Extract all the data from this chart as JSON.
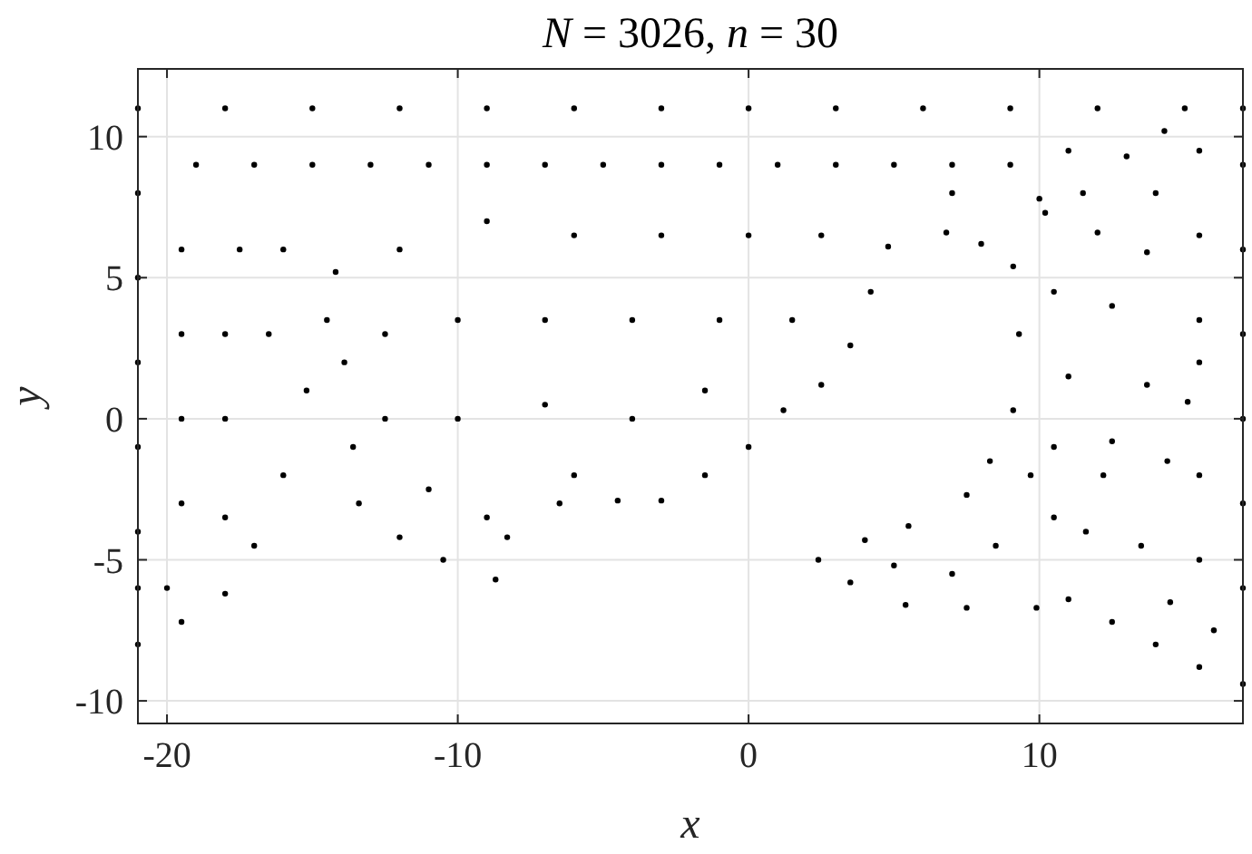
{
  "chart_data": {
    "type": "scatter",
    "title": "N = 3026, n = 30",
    "xlabel": "x",
    "ylabel": "y",
    "xlim": [
      -21,
      17
    ],
    "ylim": [
      -10.8,
      12.4
    ],
    "xticks": [
      -20,
      -10,
      0,
      10
    ],
    "yticks": [
      -10,
      -5,
      0,
      5,
      10
    ],
    "grid": true,
    "marker": "circle",
    "series": [
      {
        "color": "#000000",
        "x": [
          -21,
          -18,
          -15,
          -12,
          -9,
          -6,
          -3,
          0,
          3,
          6,
          9,
          12,
          15,
          17,
          -21,
          -21,
          -21,
          -21,
          -21,
          -21,
          -21,
          -19.5,
          -18,
          -17,
          -16,
          -15.2,
          -14.5,
          -14.2,
          -13.9,
          -13.6,
          -13.4,
          -12,
          -10.5,
          -8.7,
          -8.3,
          -6.5,
          -4.5,
          -3,
          -1.5,
          0,
          1.2,
          2.5,
          3.5,
          4.2,
          4.8,
          6.8,
          8,
          9.1,
          9.3,
          9.1,
          8.3,
          7.5,
          5.5,
          4,
          2.4,
          3.5,
          5.4,
          7.5,
          9.9,
          11,
          11.6,
          12.2,
          12.5,
          13.7,
          15.1,
          14.4,
          13.5,
          12.5,
          14,
          15.5,
          17,
          17,
          17,
          17,
          17,
          17,
          17,
          10.2,
          11.5,
          13,
          14.3,
          14,
          13.7,
          12,
          -19,
          -17,
          -15,
          -13,
          -11,
          -9,
          -7,
          -5,
          -3,
          -1,
          1,
          3,
          5,
          7,
          9,
          11,
          15.5,
          -19.5,
          -17.5,
          -16,
          -12,
          -9,
          -6,
          -3,
          0,
          2.5,
          7,
          10,
          15.5,
          -19.5,
          -18,
          -16.5,
          -12.5,
          -10,
          -7,
          -4,
          -1,
          1.5,
          10.5,
          12.5,
          15.5,
          11,
          15.5,
          -19.5,
          -18,
          -12.5,
          -10,
          -7,
          -4,
          -1.5,
          10.5,
          10.5,
          15.5,
          15.5,
          14.5,
          16,
          -19.5,
          -18,
          -20,
          -11,
          -9,
          -6,
          8.5,
          7,
          5,
          9.7
        ],
        "values": [
          11,
          11,
          11,
          11,
          11,
          11,
          11,
          11,
          11,
          11,
          11,
          11,
          11,
          11,
          8,
          5,
          2,
          -1,
          -4,
          -6,
          -8,
          -7.2,
          -6.2,
          -4.5,
          -2,
          1,
          3.5,
          5.2,
          2,
          -1,
          -3,
          -4.2,
          -5,
          -5.7,
          -4.2,
          -3,
          -2.9,
          -2.9,
          -2,
          -1,
          0.3,
          1.2,
          2.6,
          4.5,
          6.1,
          6.6,
          6.2,
          5.4,
          3,
          0.3,
          -1.5,
          -2.7,
          -3.8,
          -4.3,
          -5,
          -5.8,
          -6.6,
          -6.7,
          -6.7,
          -6.4,
          -4,
          -2,
          -0.8,
          1.2,
          0.6,
          -1.5,
          -4.5,
          -7.2,
          -8,
          -8.8,
          -9.4,
          -6,
          -3,
          0,
          3,
          6,
          9,
          7.3,
          8,
          9.3,
          10.2,
          8,
          5.9,
          6.6,
          9,
          9,
          9,
          9,
          9,
          9,
          9,
          9,
          9,
          9,
          9,
          9,
          9,
          9,
          9,
          9.5,
          9.5,
          6,
          6,
          6,
          6,
          7,
          6.5,
          6.5,
          6.5,
          6.5,
          8,
          7.8,
          6.5,
          3,
          3,
          3,
          3,
          3.5,
          3.5,
          3.5,
          3.5,
          3.5,
          4.5,
          4,
          3.5,
          1.5,
          2,
          0,
          0,
          0,
          0,
          0.5,
          0,
          1,
          -1,
          -3.5,
          -2,
          -5,
          -6.5,
          -7.5,
          -3,
          -3.5,
          -6,
          -2.5,
          -3.5,
          -2,
          -4.5,
          -5.5,
          -5.2,
          -2
        ]
      }
    ]
  }
}
